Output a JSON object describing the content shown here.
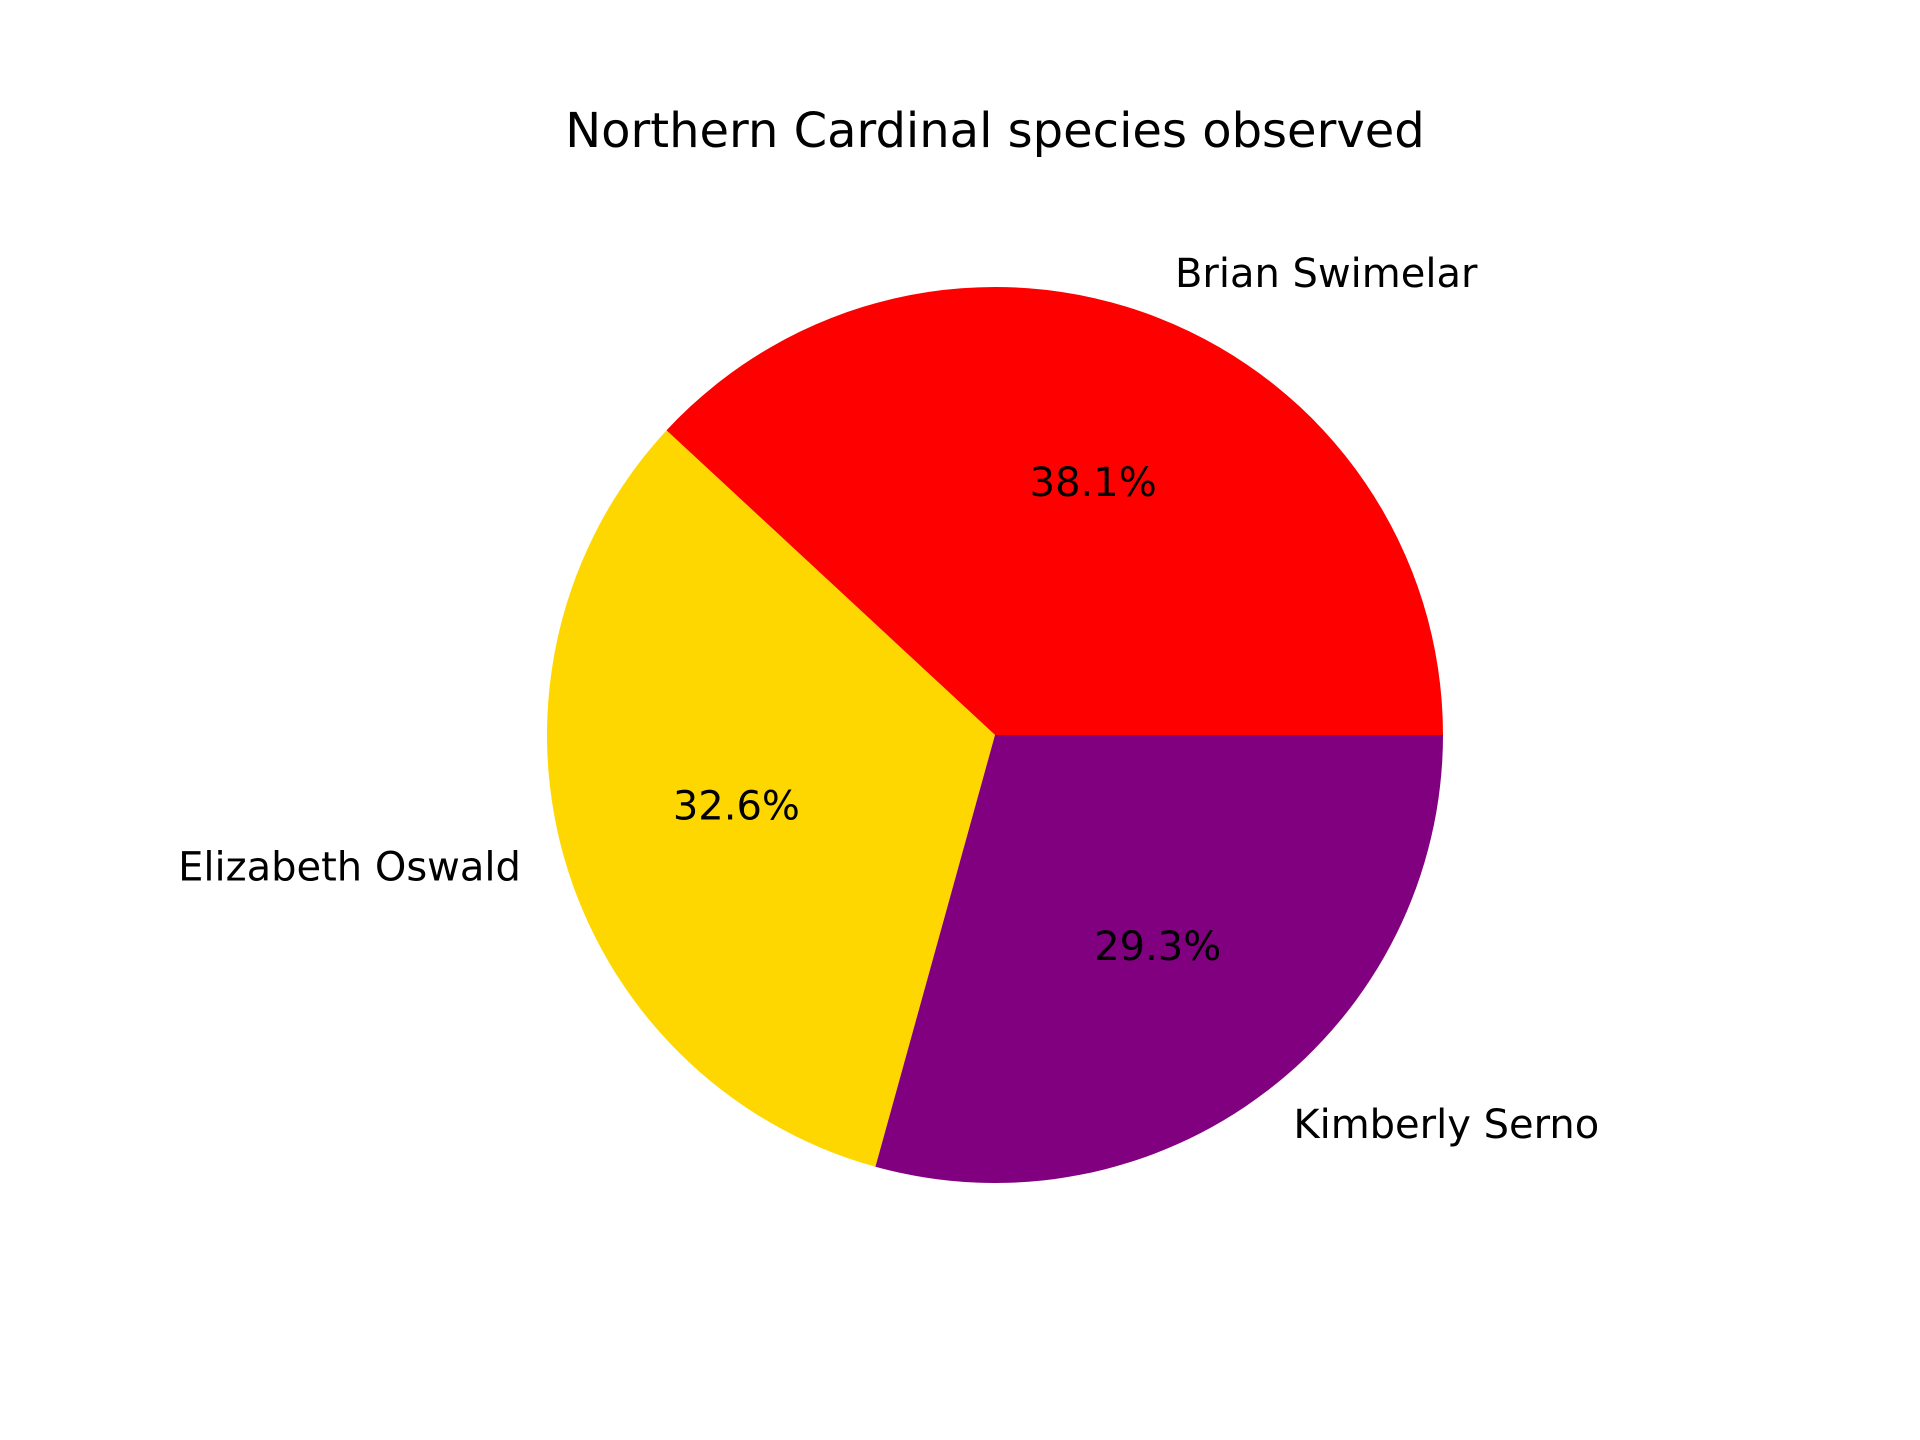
{
  "chart_data": {
    "type": "pie",
    "title": "Northern Cardinal species observed",
    "categories": [
      "Brian Swimelar",
      "Elizabeth Oswald",
      "Kimberly Serno"
    ],
    "values": [
      38.1,
      32.6,
      29.3
    ],
    "percent_labels": [
      "38.1%",
      "32.6%",
      "29.3%"
    ],
    "colors": [
      "#ff0000",
      "#ffd700",
      "#800080"
    ],
    "start_angle_deg": 0,
    "direction": "counterclockwise",
    "legend": "none"
  }
}
